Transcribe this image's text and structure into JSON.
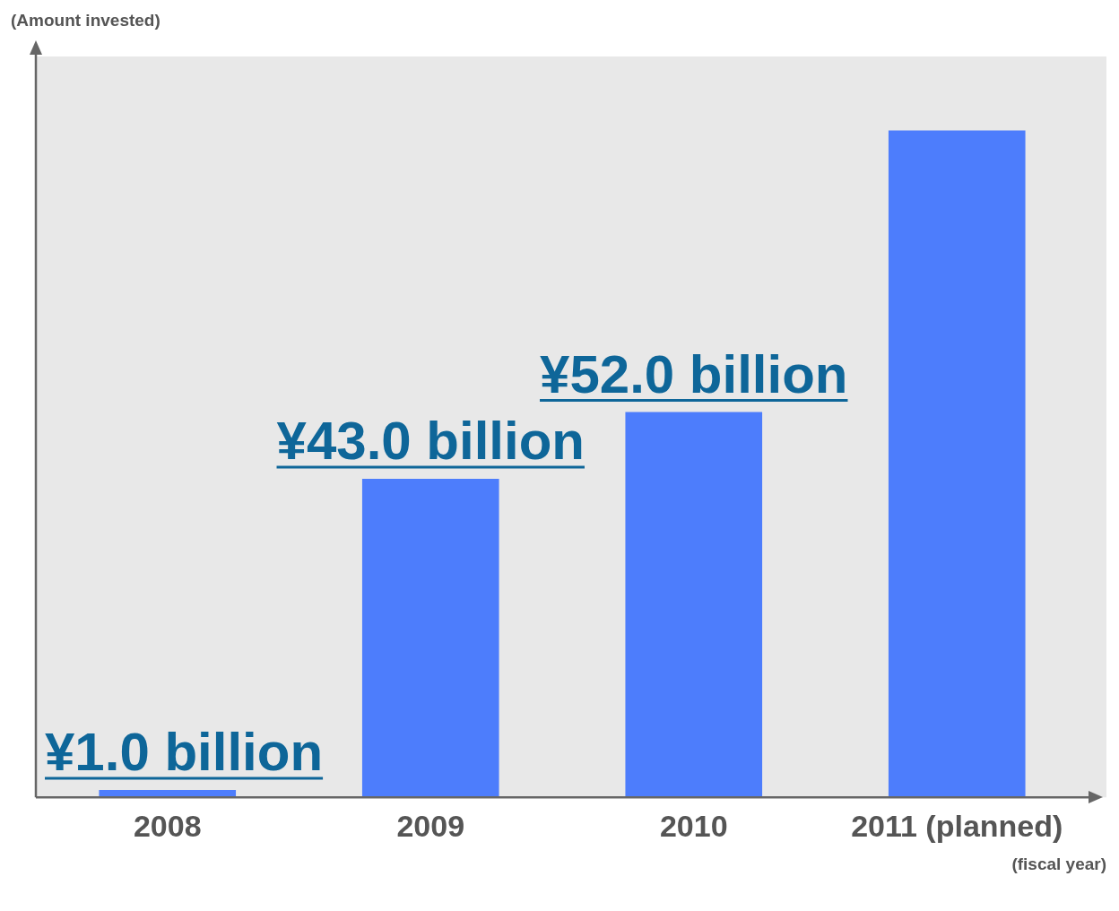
{
  "chart_data": {
    "type": "bar",
    "annotations": [
      "(Amount invested)"
    ],
    "xlabel": "(fiscal year)",
    "categories": [
      "2008",
      "2009",
      "2010",
      "2011 (planned)"
    ],
    "tick_labels": "x",
    "values": [
      1.0,
      43.0,
      52.0,
      90
    ],
    "value_labels": [
      "¥1.0 billion",
      "¥43.0 billion",
      "¥52.0 billion",
      null
    ],
    "color": "#4d7dfc",
    "grid": false,
    "legend": false
  }
}
